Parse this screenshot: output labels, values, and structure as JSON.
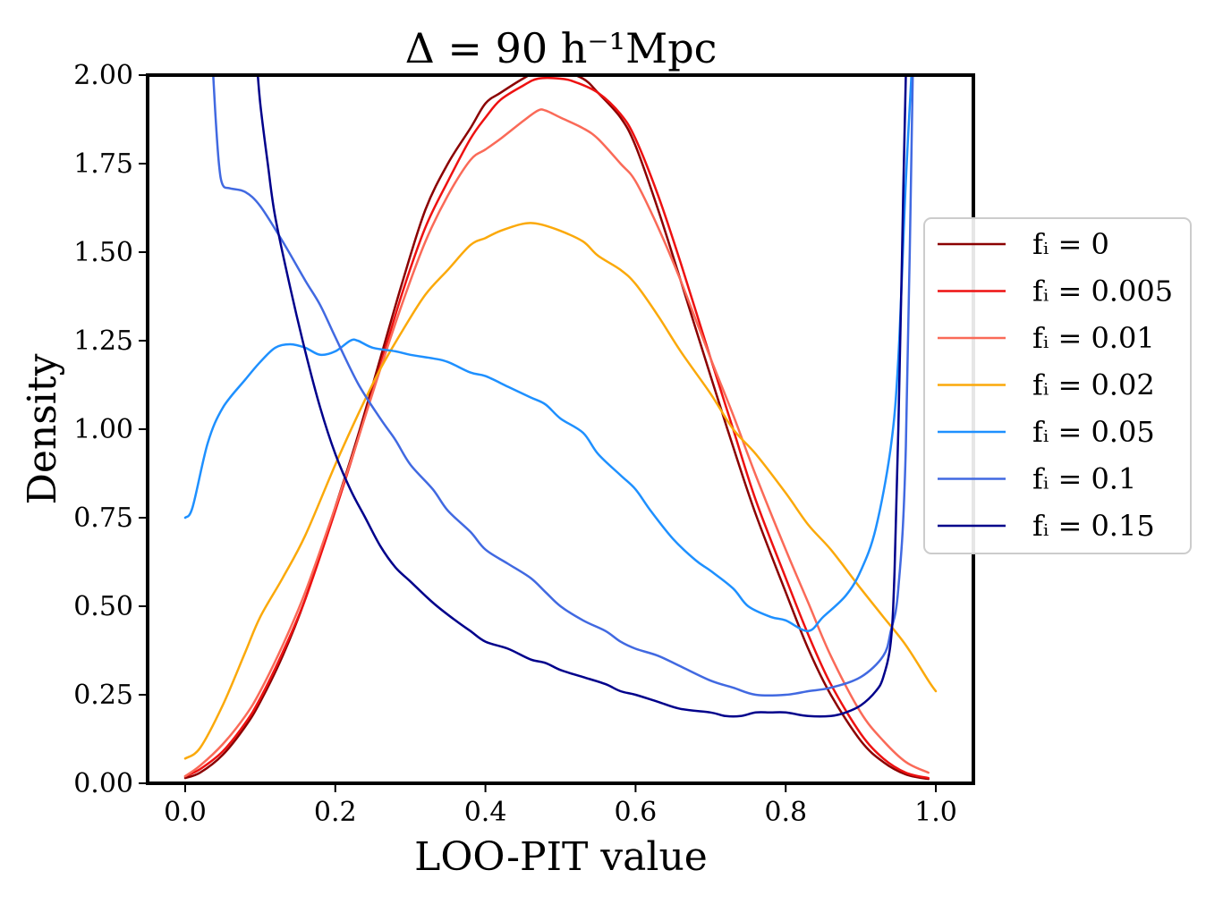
{
  "chart_data": {
    "type": "line",
    "title": "Δ = 90 h⁻¹Mpc",
    "xlabel": "LOO-PIT value",
    "ylabel": "Density",
    "xlim": [
      -0.05,
      1.05
    ],
    "ylim": [
      0,
      2.0
    ],
    "xticks": [
      0.0,
      0.2,
      0.4,
      0.6,
      0.8,
      1.0
    ],
    "xtick_labels": [
      "0.0",
      "0.2",
      "0.4",
      "0.6",
      "0.8",
      "1.0"
    ],
    "yticks": [
      0.0,
      0.25,
      0.5,
      0.75,
      1.0,
      1.25,
      1.5,
      1.75,
      2.0
    ],
    "ytick_labels": [
      "0.00",
      "0.25",
      "0.50",
      "0.75",
      "1.00",
      "1.25",
      "1.50",
      "1.75",
      "2.00"
    ],
    "grid": false,
    "legend_position": "center-right, outside plot",
    "series": [
      {
        "name": "f_i = 0",
        "label": "fᵢ = 0",
        "color": "#8b0000",
        "x": [
          0.0,
          0.02,
          0.05,
          0.08,
          0.1,
          0.13,
          0.16,
          0.2,
          0.23,
          0.26,
          0.29,
          0.32,
          0.35,
          0.38,
          0.4,
          0.42,
          0.45,
          0.47,
          0.5,
          0.53,
          0.55,
          0.58,
          0.6,
          0.63,
          0.66,
          0.7,
          0.73,
          0.76,
          0.8,
          0.83,
          0.86,
          0.9,
          0.93,
          0.96,
          0.99
        ],
        "y": [
          0.015,
          0.03,
          0.08,
          0.16,
          0.23,
          0.36,
          0.52,
          0.78,
          0.98,
          1.2,
          1.42,
          1.62,
          1.75,
          1.85,
          1.92,
          1.95,
          1.99,
          2.01,
          2.01,
          1.99,
          1.95,
          1.88,
          1.8,
          1.62,
          1.42,
          1.15,
          0.95,
          0.76,
          0.54,
          0.38,
          0.25,
          0.12,
          0.06,
          0.025,
          0.012
        ]
      },
      {
        "name": "f_i = 0.005",
        "label": "fᵢ = 0.005",
        "color": "#ee1111",
        "x": [
          0.0,
          0.02,
          0.05,
          0.08,
          0.1,
          0.13,
          0.16,
          0.2,
          0.23,
          0.26,
          0.29,
          0.32,
          0.35,
          0.38,
          0.4,
          0.42,
          0.45,
          0.47,
          0.5,
          0.52,
          0.55,
          0.58,
          0.6,
          0.63,
          0.66,
          0.7,
          0.73,
          0.76,
          0.8,
          0.83,
          0.86,
          0.9,
          0.93,
          0.96,
          0.99
        ],
        "y": [
          0.02,
          0.04,
          0.09,
          0.17,
          0.24,
          0.37,
          0.52,
          0.77,
          0.97,
          1.18,
          1.39,
          1.57,
          1.7,
          1.82,
          1.88,
          1.93,
          1.97,
          1.99,
          1.99,
          1.98,
          1.95,
          1.89,
          1.82,
          1.66,
          1.47,
          1.2,
          1.0,
          0.8,
          0.58,
          0.42,
          0.28,
          0.14,
          0.07,
          0.03,
          0.015
        ]
      },
      {
        "name": "f_i = 0.01",
        "label": "fᵢ = 0.01",
        "color": "#fa6a58",
        "x": [
          0.0,
          0.02,
          0.05,
          0.08,
          0.1,
          0.13,
          0.16,
          0.2,
          0.23,
          0.26,
          0.29,
          0.32,
          0.35,
          0.38,
          0.4,
          0.42,
          0.45,
          0.47,
          0.48,
          0.5,
          0.53,
          0.55,
          0.58,
          0.6,
          0.63,
          0.66,
          0.7,
          0.73,
          0.76,
          0.8,
          0.83,
          0.86,
          0.9,
          0.93,
          0.96,
          0.99
        ],
        "y": [
          0.02,
          0.05,
          0.11,
          0.19,
          0.26,
          0.39,
          0.54,
          0.78,
          0.97,
          1.17,
          1.36,
          1.53,
          1.66,
          1.76,
          1.79,
          1.82,
          1.87,
          1.9,
          1.9,
          1.88,
          1.85,
          1.82,
          1.75,
          1.7,
          1.57,
          1.42,
          1.2,
          1.04,
          0.87,
          0.66,
          0.51,
          0.36,
          0.2,
          0.12,
          0.06,
          0.03
        ]
      },
      {
        "name": "f_i = 0.02",
        "label": "fᵢ = 0.02",
        "color": "#fba90a",
        "x": [
          0.0,
          0.02,
          0.05,
          0.08,
          0.1,
          0.13,
          0.16,
          0.2,
          0.23,
          0.26,
          0.29,
          0.32,
          0.35,
          0.38,
          0.4,
          0.42,
          0.45,
          0.47,
          0.5,
          0.53,
          0.55,
          0.58,
          0.6,
          0.63,
          0.66,
          0.7,
          0.73,
          0.76,
          0.8,
          0.83,
          0.86,
          0.9,
          0.93,
          0.96,
          0.99,
          1.0
        ],
        "y": [
          0.07,
          0.1,
          0.22,
          0.37,
          0.47,
          0.58,
          0.7,
          0.9,
          1.04,
          1.17,
          1.28,
          1.38,
          1.45,
          1.52,
          1.54,
          1.56,
          1.58,
          1.58,
          1.56,
          1.53,
          1.49,
          1.45,
          1.41,
          1.32,
          1.22,
          1.1,
          1.0,
          0.93,
          0.82,
          0.73,
          0.66,
          0.55,
          0.47,
          0.39,
          0.29,
          0.26
        ]
      },
      {
        "name": "f_i = 0.05",
        "label": "fᵢ = 0.05",
        "color": "#1e90ff",
        "x": [
          0.0,
          0.01,
          0.03,
          0.05,
          0.08,
          0.1,
          0.12,
          0.14,
          0.16,
          0.18,
          0.2,
          0.22,
          0.23,
          0.25,
          0.28,
          0.3,
          0.33,
          0.35,
          0.38,
          0.4,
          0.43,
          0.46,
          0.48,
          0.5,
          0.53,
          0.55,
          0.58,
          0.6,
          0.62,
          0.65,
          0.68,
          0.7,
          0.73,
          0.75,
          0.78,
          0.8,
          0.83,
          0.85,
          0.88,
          0.9,
          0.92,
          0.94,
          0.95,
          0.96,
          0.97
        ],
        "y": [
          0.75,
          0.78,
          0.96,
          1.06,
          1.14,
          1.19,
          1.23,
          1.24,
          1.23,
          1.21,
          1.22,
          1.25,
          1.25,
          1.23,
          1.22,
          1.21,
          1.2,
          1.19,
          1.16,
          1.15,
          1.12,
          1.09,
          1.07,
          1.03,
          0.99,
          0.93,
          0.87,
          0.83,
          0.77,
          0.69,
          0.63,
          0.6,
          0.55,
          0.5,
          0.47,
          0.46,
          0.43,
          0.47,
          0.53,
          0.6,
          0.72,
          0.95,
          1.2,
          1.7,
          2.1
        ]
      },
      {
        "name": "f_i = 0.1",
        "label": "fᵢ = 0.1",
        "color": "#4169e1",
        "x": [
          0.035,
          0.04,
          0.045,
          0.05,
          0.06,
          0.08,
          0.1,
          0.13,
          0.16,
          0.18,
          0.2,
          0.23,
          0.26,
          0.28,
          0.3,
          0.33,
          0.35,
          0.38,
          0.4,
          0.43,
          0.46,
          0.48,
          0.5,
          0.53,
          0.56,
          0.58,
          0.6,
          0.63,
          0.66,
          0.7,
          0.73,
          0.76,
          0.8,
          0.83,
          0.86,
          0.9,
          0.93,
          0.94,
          0.95,
          0.96,
          0.97
        ],
        "y": [
          2.1,
          1.9,
          1.75,
          1.69,
          1.68,
          1.67,
          1.63,
          1.53,
          1.42,
          1.35,
          1.26,
          1.13,
          1.03,
          0.97,
          0.9,
          0.83,
          0.77,
          0.71,
          0.66,
          0.62,
          0.58,
          0.54,
          0.5,
          0.46,
          0.43,
          0.4,
          0.38,
          0.36,
          0.33,
          0.29,
          0.27,
          0.25,
          0.25,
          0.26,
          0.27,
          0.3,
          0.36,
          0.43,
          0.55,
          0.95,
          2.1
        ]
      },
      {
        "name": "f_i = 0.15",
        "label": "fᵢ = 0.15",
        "color": "#00008b",
        "x": [
          0.095,
          0.1,
          0.11,
          0.12,
          0.14,
          0.16,
          0.18,
          0.2,
          0.22,
          0.24,
          0.26,
          0.28,
          0.3,
          0.33,
          0.36,
          0.38,
          0.4,
          0.43,
          0.46,
          0.48,
          0.5,
          0.53,
          0.56,
          0.58,
          0.6,
          0.63,
          0.66,
          0.7,
          0.72,
          0.74,
          0.76,
          0.78,
          0.8,
          0.83,
          0.86,
          0.88,
          0.9,
          0.92,
          0.93,
          0.94,
          0.945,
          0.95,
          0.955,
          0.96,
          0.965
        ],
        "y": [
          2.05,
          1.92,
          1.75,
          1.6,
          1.4,
          1.22,
          1.06,
          0.93,
          0.83,
          0.75,
          0.67,
          0.61,
          0.57,
          0.51,
          0.46,
          0.43,
          0.4,
          0.38,
          0.35,
          0.34,
          0.32,
          0.3,
          0.28,
          0.26,
          0.25,
          0.23,
          0.21,
          0.2,
          0.19,
          0.19,
          0.2,
          0.2,
          0.2,
          0.19,
          0.19,
          0.2,
          0.22,
          0.26,
          0.3,
          0.4,
          0.6,
          1.0,
          1.5,
          2.0,
          2.1
        ]
      }
    ]
  }
}
